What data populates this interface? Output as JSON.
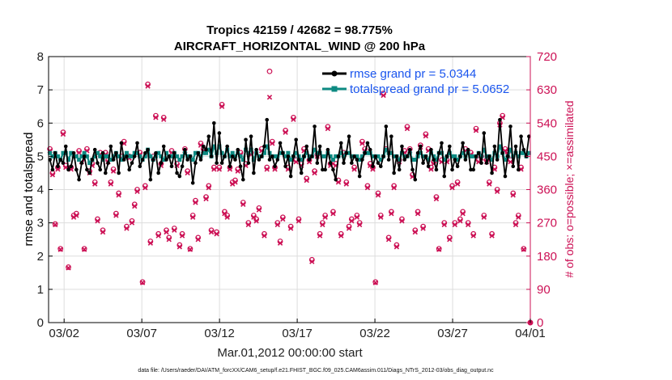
{
  "colors": {
    "rmse": "#000000",
    "spread": "#0d8a82",
    "obs": "#cc1155",
    "legend_text": "#1a55ee",
    "grid": "#dddddd"
  },
  "chart_data": {
    "type": "line",
    "title": "Tropics 42159 / 42682 = 98.775%",
    "subtitle": "AIRCRAFT_HORIZONTAL_WIND @ 200 hPa",
    "xlabel": "Mar.01,2012 00:00:00 start",
    "ylabel": "rmse and totalspread",
    "y2label": "# of obs: o=possible; ×=assimilated",
    "xlim": [
      0,
      31
    ],
    "ylim": [
      0,
      8
    ],
    "y2lim": [
      0,
      720
    ],
    "xticks": [
      {
        "x": 1,
        "label": "03/02"
      },
      {
        "x": 6,
        "label": "03/07"
      },
      {
        "x": 11,
        "label": "03/12"
      },
      {
        "x": 16,
        "label": "03/17"
      },
      {
        "x": 21,
        "label": "03/22"
      },
      {
        "x": 26,
        "label": "03/27"
      },
      {
        "x": 31,
        "label": "04/01"
      }
    ],
    "yticks": [
      "0",
      "1",
      "2",
      "3",
      "4",
      "5",
      "6",
      "7",
      "8"
    ],
    "y2ticks": [
      "0",
      "90",
      "180",
      "270",
      "360",
      "450",
      "540",
      "630",
      "720"
    ],
    "legend": {
      "position": "top-right",
      "entries": [
        "rmse grand pr = 5.0344",
        "totalspread grand pr = 5.0652"
      ]
    },
    "series": [
      {
        "name": "rmse",
        "values": [
          4.9,
          4.6,
          5.1,
          4.7,
          4.9,
          4.8,
          5.3,
          4.6,
          4.7,
          5.1,
          4.6,
          4.3,
          4.8,
          5.0,
          4.6,
          4.5,
          4.9,
          5.2,
          4.8,
          4.6,
          5.1,
          4.5,
          4.8,
          5.3,
          4.9,
          5.1,
          4.5,
          5.4,
          4.9,
          5.0,
          4.6,
          4.8,
          5.0,
          5.4,
          4.7,
          4.9,
          5.1,
          5.2,
          4.3,
          4.9,
          5.1,
          4.5,
          4.8,
          5.3,
          4.9,
          5.0,
          4.7,
          5.1,
          4.5,
          4.4,
          4.7,
          5.2,
          4.9,
          5.0,
          4.2,
          4.8,
          5.1,
          4.9,
          5.3,
          5.2,
          5.6,
          5.0,
          6.0,
          4.8,
          5.7,
          4.8,
          5.0,
          5.3,
          4.7,
          5.0,
          4.9,
          5.2,
          4.7,
          4.3,
          5.5,
          4.8,
          5.6,
          4.5,
          5.2,
          4.9,
          5.0,
          5.3,
          6.1,
          4.9,
          5.0,
          4.7,
          4.9,
          5.4,
          5.1,
          4.7,
          5.0,
          4.4,
          5.0,
          5.5,
          4.9,
          4.5,
          5.0,
          5.3,
          4.9,
          5.0,
          5.9,
          4.8,
          5.3,
          4.6,
          4.6,
          5.2,
          4.8,
          4.6,
          4.3,
          5.0,
          5.4,
          4.8,
          5.1,
          5.6,
          4.8,
          5.0,
          4.9,
          4.4,
          4.9,
          5.1,
          5.4,
          5.2,
          4.7,
          5.0,
          4.8,
          4.7,
          5.0,
          5.9,
          4.9,
          5.6,
          4.5,
          5.0,
          4.6,
          5.3,
          4.9,
          5.0,
          5.2,
          4.6,
          4.3,
          5.1,
          5.3,
          4.8,
          5.0,
          4.7,
          5.2,
          4.9,
          4.6,
          5.1,
          5.4,
          4.4,
          5.0,
          5.3,
          4.6,
          4.9,
          4.7,
          5.0,
          5.4,
          4.9,
          5.2,
          4.6,
          4.6,
          5.0,
          5.1,
          4.8,
          5.7,
          4.8,
          5.0,
          4.5,
          5.3,
          4.9,
          6.1,
          5.1,
          4.4,
          5.0,
          5.9,
          4.7,
          5.3,
          4.6,
          5.6,
          5.2,
          5.0,
          5.6
        ]
      },
      {
        "name": "totalspread",
        "values": [
          5.1,
          5.0,
          5.1,
          5.0,
          4.9,
          5.1,
          5.1,
          4.9,
          5.1,
          5.0,
          5.0,
          4.9,
          5.0,
          5.1,
          5.0,
          4.8,
          4.9,
          5.0,
          5.1,
          5.0,
          4.9,
          5.0,
          5.0,
          4.9,
          5.0,
          5.1,
          5.0,
          4.9,
          5.0,
          5.1,
          5.0,
          5.0,
          5.1,
          5.1,
          5.0,
          4.9,
          5.0,
          5.2,
          5.0,
          4.9,
          5.0,
          5.1,
          5.0,
          4.9,
          5.1,
          5.0,
          5.0,
          5.1,
          5.0,
          4.9,
          5.0,
          5.1,
          5.0,
          5.0,
          4.9,
          5.1,
          5.1,
          5.0,
          5.1,
          5.1,
          5.2,
          5.0,
          5.3,
          5.1,
          5.3,
          5.1,
          5.0,
          5.2,
          5.0,
          5.1,
          5.0,
          5.1,
          5.0,
          4.9,
          5.2,
          5.1,
          5.2,
          4.9,
          5.1,
          5.0,
          5.0,
          5.1,
          5.3,
          5.1,
          5.0,
          5.0,
          5.0,
          5.1,
          5.1,
          5.0,
          5.1,
          4.9,
          5.0,
          5.1,
          5.0,
          4.9,
          5.0,
          5.1,
          5.0,
          5.0,
          5.2,
          5.1,
          5.1,
          5.0,
          5.0,
          5.1,
          5.0,
          4.9,
          5.0,
          5.0,
          5.1,
          5.0,
          5.1,
          5.1,
          5.0,
          5.0,
          5.0,
          4.9,
          5.0,
          5.1,
          5.1,
          5.1,
          5.0,
          5.0,
          5.0,
          4.9,
          5.0,
          5.2,
          5.1,
          5.1,
          5.0,
          5.0,
          4.9,
          5.1,
          5.0,
          5.0,
          5.1,
          4.9,
          4.9,
          5.0,
          5.1,
          5.0,
          5.0,
          4.9,
          5.1,
          5.0,
          4.9,
          5.1,
          5.1,
          4.9,
          5.0,
          5.1,
          5.0,
          5.0,
          4.9,
          5.0,
          5.1,
          5.0,
          5.1,
          5.0,
          5.0,
          5.0,
          5.1,
          5.0,
          5.2,
          5.0,
          5.0,
          4.9,
          5.1,
          5.0,
          5.3,
          5.1,
          4.9,
          5.0,
          5.2,
          5.0,
          5.1,
          5.0,
          5.1,
          5.1,
          5.0,
          5.1
        ]
      },
      {
        "name": "obs_possible",
        "values": [
          470,
          405,
          267,
          420,
          200,
          515,
          425,
          150,
          420,
          290,
          295,
          465,
          440,
          200,
          470,
          410,
          430,
          380,
          280,
          460,
          250,
          460,
          440,
          380,
          415,
          295,
          350,
          450,
          490,
          260,
          450,
          275,
          320,
          360,
          460,
          110,
          370,
          645,
          220,
          450,
          560,
          240,
          430,
          555,
          250,
          230,
          465,
          255,
          430,
          210,
          240,
          470,
          410,
          200,
          290,
          330,
          230,
          485,
          470,
          340,
          370,
          250,
          420,
          245,
          420,
          590,
          300,
          290,
          420,
          380,
          385,
          415,
          460,
          325,
          430,
          270,
          460,
          290,
          280,
          310,
          470,
          240,
          420,
          680,
          490,
          420,
          270,
          220,
          285,
          520,
          420,
          260,
          555,
          440,
          280,
          430,
          470,
          390,
          440,
          170,
          410,
          455,
          240,
          270,
          290,
          530,
          430,
          300,
          430,
          385,
          240,
          460,
          380,
          260,
          280,
          420,
          290,
          270,
          490,
          470,
          370,
          430,
          420,
          110,
          350,
          290,
          620,
          470,
          230,
          300,
          370,
          210,
          440,
          280,
          465,
          530,
          470,
          400,
          250,
          300,
          480,
          260,
          510,
          470,
          420,
          435,
          340,
          200,
          440,
          270,
          440,
          230,
          370,
          270,
          380,
          280,
          300,
          470,
          270,
          460,
          240,
          525,
          440,
          450,
          290,
          440,
          380,
          240,
          420,
          360,
          540,
          560,
          470,
          460,
          440,
          350,
          270,
          290,
          420,
          200
        ]
      },
      {
        "name": "obs_assimilated",
        "values": [
          465,
          400,
          265,
          415,
          198,
          510,
          420,
          148,
          415,
          285,
          290,
          460,
          435,
          198,
          465,
          405,
          425,
          375,
          275,
          455,
          245,
          455,
          435,
          375,
          410,
          290,
          345,
          445,
          485,
          255,
          445,
          270,
          315,
          355,
          455,
          108,
          365,
          640,
          215,
          445,
          555,
          235,
          425,
          550,
          245,
          225,
          460,
          250,
          425,
          205,
          235,
          465,
          405,
          198,
          285,
          325,
          225,
          480,
          465,
          335,
          365,
          245,
          415,
          240,
          415,
          585,
          295,
          285,
          415,
          375,
          380,
          410,
          455,
          320,
          425,
          265,
          455,
          285,
          275,
          305,
          465,
          235,
          415,
          610,
          485,
          415,
          265,
          215,
          280,
          515,
          415,
          255,
          550,
          435,
          275,
          425,
          465,
          385,
          435,
          165,
          405,
          450,
          235,
          265,
          285,
          525,
          425,
          295,
          425,
          380,
          235,
          455,
          375,
          255,
          275,
          415,
          285,
          265,
          485,
          465,
          365,
          425,
          415,
          108,
          345,
          285,
          615,
          465,
          225,
          295,
          365,
          205,
          435,
          275,
          460,
          525,
          465,
          395,
          245,
          295,
          475,
          255,
          505,
          465,
          415,
          430,
          335,
          198,
          435,
          265,
          435,
          225,
          365,
          265,
          375,
          275,
          295,
          465,
          265,
          455,
          235,
          520,
          435,
          445,
          285,
          435,
          375,
          235,
          415,
          355,
          535,
          555,
          465,
          455,
          435,
          345,
          265,
          285,
          415,
          198
        ]
      }
    ]
  },
  "footer_note": "data file: /Users/raeder/DAI/ATM_forcXX/CAM6_setup/f.e21.FHIST_BGC.f09_025.CAM6assim.011/Diags_NTrS_2012-03/obs_diag_output.nc"
}
